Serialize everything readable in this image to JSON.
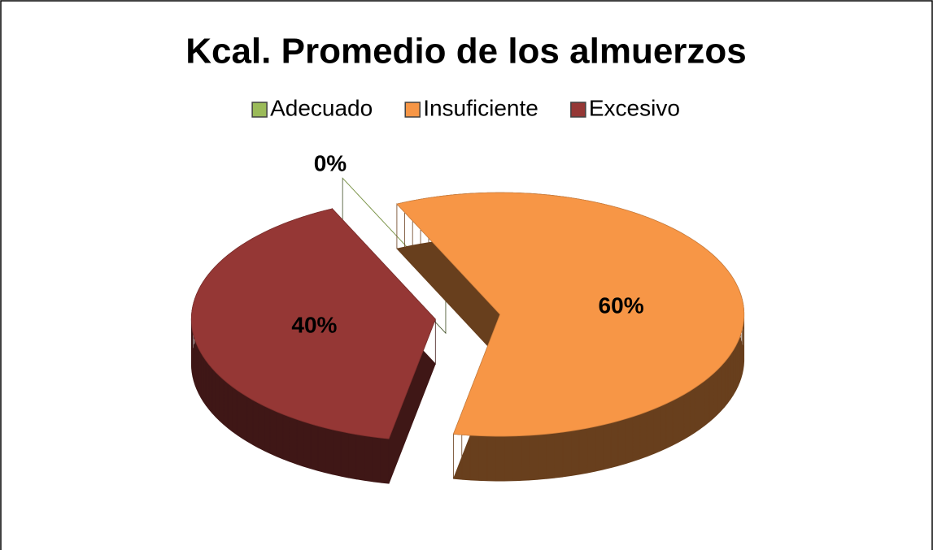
{
  "chart_data": {
    "type": "pie",
    "title": "Kcal. Promedio de los almuerzos",
    "categories": [
      "Adecuado",
      "Insuficiente",
      "Excesivo"
    ],
    "values": [
      0,
      60,
      40
    ],
    "value_labels": [
      "0%",
      "60%",
      "40%"
    ],
    "colors": [
      "#9bbb59",
      "#f79646",
      "#953735"
    ],
    "legend": "top"
  }
}
